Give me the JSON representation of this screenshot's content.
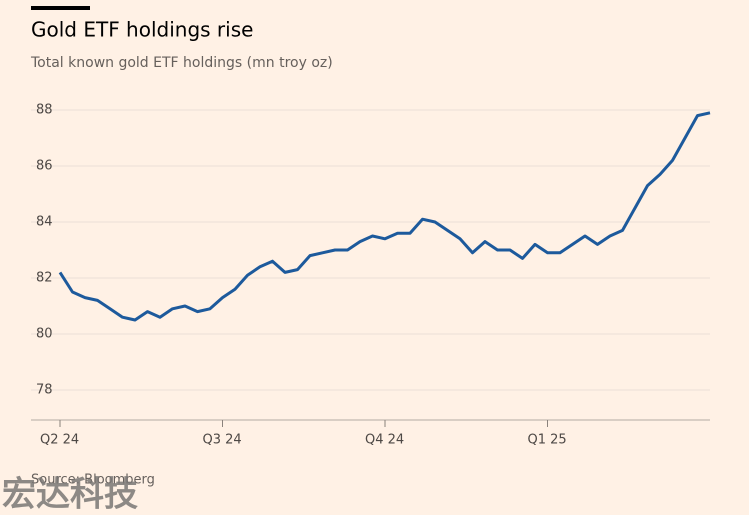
{
  "chart_data": {
    "type": "line",
    "title": "Gold ETF holdings rise",
    "subtitle": "Total known gold ETF holdings (mn troy oz)",
    "source": "Source: Bloomberg",
    "watermark": "宏达科技",
    "categories": [
      "Q2 24",
      null,
      null,
      null,
      null,
      null,
      null,
      null,
      null,
      null,
      null,
      null,
      null,
      "Q3 24",
      null,
      null,
      null,
      null,
      null,
      null,
      null,
      null,
      null,
      null,
      null,
      null,
      "Q4 24",
      null,
      null,
      null,
      null,
      null,
      null,
      null,
      null,
      null,
      null,
      null,
      null,
      "Q1 25",
      null,
      null,
      null,
      null,
      null,
      null,
      null,
      null,
      null,
      null,
      null,
      null,
      null
    ],
    "series": [
      {
        "name": "Total known gold ETF holdings",
        "color": "#1d5a9c",
        "values": [
          82.2,
          81.5,
          81.3,
          81.2,
          80.9,
          80.6,
          80.5,
          80.8,
          80.6,
          80.9,
          81.0,
          80.8,
          80.9,
          81.3,
          81.6,
          82.1,
          82.4,
          82.6,
          82.2,
          82.3,
          82.8,
          82.9,
          83.0,
          83.0,
          83.3,
          83.5,
          83.4,
          83.6,
          83.6,
          84.1,
          84.0,
          83.7,
          83.4,
          82.9,
          83.3,
          83.0,
          83.0,
          82.7,
          83.2,
          82.9,
          82.9,
          83.2,
          83.5,
          83.2,
          83.5,
          83.7,
          84.5,
          85.3,
          85.7,
          86.2,
          87.0,
          87.8,
          87.9
        ]
      }
    ],
    "ylim": [
      77,
      89
    ],
    "yticks": [
      78,
      80,
      82,
      84,
      86,
      88
    ],
    "grid": true
  }
}
